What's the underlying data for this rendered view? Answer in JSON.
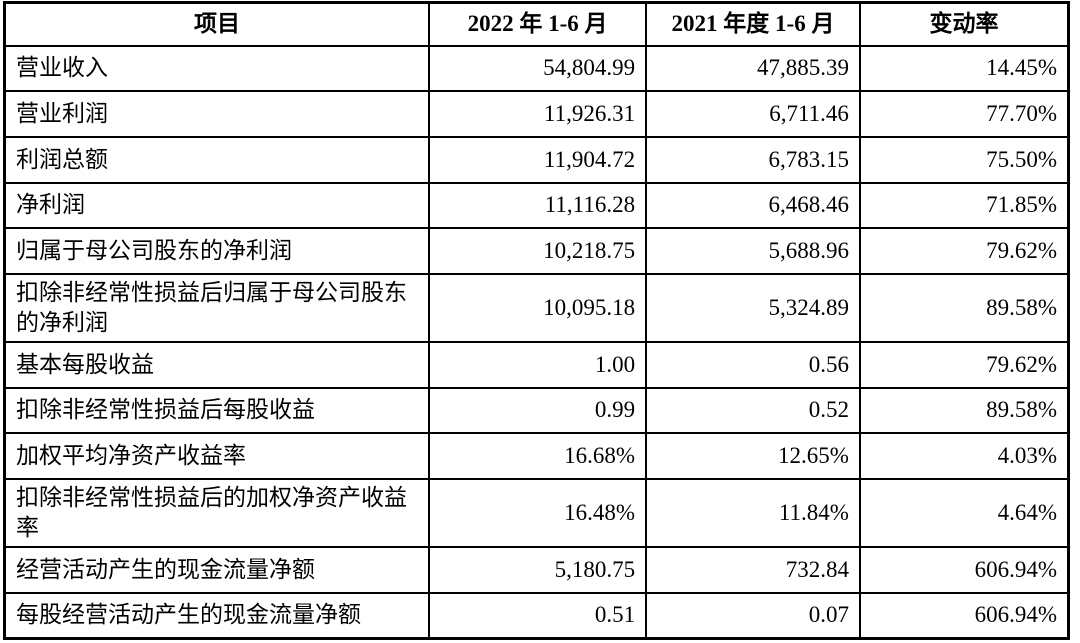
{
  "document": {
    "type": "financial-summary-table",
    "text_color": "#000000",
    "border_color": "#000000",
    "background_color": "#ffffff"
  },
  "table": {
    "columns": [
      {
        "key": "item",
        "label": "项目"
      },
      {
        "key": "v2022",
        "label": "2022 年 1-6 月"
      },
      {
        "key": "v2021",
        "label": "2021 年度 1-6 月"
      },
      {
        "key": "change",
        "label": "变动率"
      }
    ],
    "rows": [
      {
        "item": "营业收入",
        "v2022": "54,804.99",
        "v2021": "47,885.39",
        "change": "14.45%"
      },
      {
        "item": "营业利润",
        "v2022": "11,926.31",
        "v2021": "6,711.46",
        "change": "77.70%"
      },
      {
        "item": "利润总额",
        "v2022": "11,904.72",
        "v2021": "6,783.15",
        "change": "75.50%"
      },
      {
        "item": "净利润",
        "v2022": "11,116.28",
        "v2021": "6,468.46",
        "change": "71.85%"
      },
      {
        "item": "归属于母公司股东的净利润",
        "v2022": "10,218.75",
        "v2021": "5,688.96",
        "change": "79.62%"
      },
      {
        "item": "扣除非经常性损益后归属于母公司股东的净利润",
        "v2022": "10,095.18",
        "v2021": "5,324.89",
        "change": "89.58%"
      },
      {
        "item": "基本每股收益",
        "v2022": "1.00",
        "v2021": "0.56",
        "change": "79.62%"
      },
      {
        "item": "扣除非经常性损益后每股收益",
        "v2022": "0.99",
        "v2021": "0.52",
        "change": "89.58%"
      },
      {
        "item": "加权平均净资产收益率",
        "v2022": "16.68%",
        "v2021": "12.65%",
        "change": "4.03%"
      },
      {
        "item": "扣除非经常性损益后的加权净资产收益率",
        "v2022": "16.48%",
        "v2021": "11.84%",
        "change": "4.64%"
      },
      {
        "item": "经营活动产生的现金流量净额",
        "v2022": "5,180.75",
        "v2021": "732.84",
        "change": "606.94%"
      },
      {
        "item": "每股经营活动产生的现金流量净额",
        "v2022": "0.51",
        "v2021": "0.07",
        "change": "606.94%"
      }
    ]
  }
}
